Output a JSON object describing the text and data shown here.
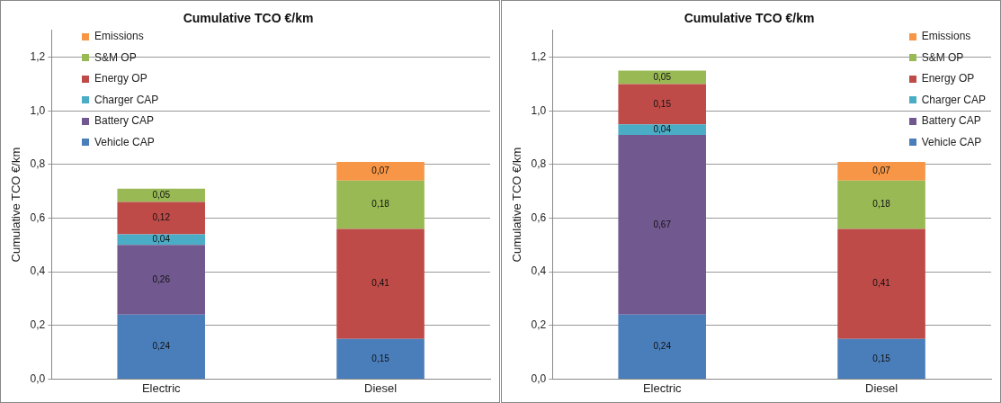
{
  "chart_data": [
    {
      "type": "bar",
      "stacked": true,
      "title": "Cumulative TCO €/km",
      "ylabel": "Cumulative TCO €/km",
      "categories": [
        "Electric",
        "Diesel"
      ],
      "ylim": [
        0,
        1.3
      ],
      "yticks": [
        {
          "value": 0,
          "label": "0,0"
        },
        {
          "value": 0.2,
          "label": "0,2"
        },
        {
          "value": 0.4,
          "label": "0,4"
        },
        {
          "value": 0.6,
          "label": "0,6"
        },
        {
          "value": 0.8,
          "label": "0,8"
        },
        {
          "value": 1,
          "label": "1,0"
        },
        {
          "value": 1.2,
          "label": "1,2"
        }
      ],
      "grid": "y",
      "legend": "top left",
      "series": [
        {
          "name": "Vehicle CAP",
          "color": "#4a7ebb",
          "values": [
            0.24,
            0.15
          ],
          "value_labels": [
            "0,24",
            "0,15"
          ]
        },
        {
          "name": "Battery CAP",
          "color": "#71588f",
          "values": [
            0.26,
            null
          ],
          "value_labels": [
            "0,26",
            null
          ]
        },
        {
          "name": "Charger CAP",
          "color": "#4bacc6",
          "values": [
            0.04,
            null
          ],
          "value_labels": [
            "0,04",
            null
          ]
        },
        {
          "name": "Energy OP",
          "color": "#be4b48",
          "values": [
            0.12,
            0.41
          ],
          "value_labels": [
            "0,12",
            "0,41"
          ]
        },
        {
          "name": "S&M OP",
          "color": "#98b954",
          "values": [
            0.05,
            0.18
          ],
          "value_labels": [
            "0,05",
            "0,18"
          ]
        },
        {
          "name": "Emissions",
          "color": "#f79646",
          "values": [
            null,
            0.07
          ],
          "value_labels": [
            null,
            "0,07"
          ]
        }
      ]
    },
    {
      "type": "bar",
      "stacked": true,
      "title": "Cumulative TCO €/km",
      "ylabel": "Cumulative TCO €/km",
      "categories": [
        "Electric",
        "Diesel"
      ],
      "ylim": [
        0,
        1.3
      ],
      "yticks": [
        {
          "value": 0,
          "label": "0,0"
        },
        {
          "value": 0.2,
          "label": "0,2"
        },
        {
          "value": 0.4,
          "label": "0,4"
        },
        {
          "value": 0.6,
          "label": "0,6"
        },
        {
          "value": 0.8,
          "label": "0,8"
        },
        {
          "value": 1,
          "label": "1,0"
        },
        {
          "value": 1.2,
          "label": "1,2"
        }
      ],
      "grid": "y",
      "legend": "top right",
      "series": [
        {
          "name": "Vehicle CAP",
          "color": "#4a7ebb",
          "values": [
            0.24,
            0.15
          ],
          "value_labels": [
            "0,24",
            "0,15"
          ]
        },
        {
          "name": "Battery CAP",
          "color": "#71588f",
          "values": [
            0.67,
            null
          ],
          "value_labels": [
            "0,67",
            null
          ]
        },
        {
          "name": "Charger CAP",
          "color": "#4bacc6",
          "values": [
            0.04,
            null
          ],
          "value_labels": [
            "0,04",
            null
          ]
        },
        {
          "name": "Energy OP",
          "color": "#be4b48",
          "values": [
            0.15,
            0.41
          ],
          "value_labels": [
            "0,15",
            "0,41"
          ]
        },
        {
          "name": "S&M OP",
          "color": "#98b954",
          "values": [
            0.05,
            0.18
          ],
          "value_labels": [
            "0,05",
            "0,18"
          ]
        },
        {
          "name": "Emissions",
          "color": "#f79646",
          "values": [
            null,
            0.07
          ],
          "value_labels": [
            null,
            "0,07"
          ]
        }
      ]
    }
  ]
}
